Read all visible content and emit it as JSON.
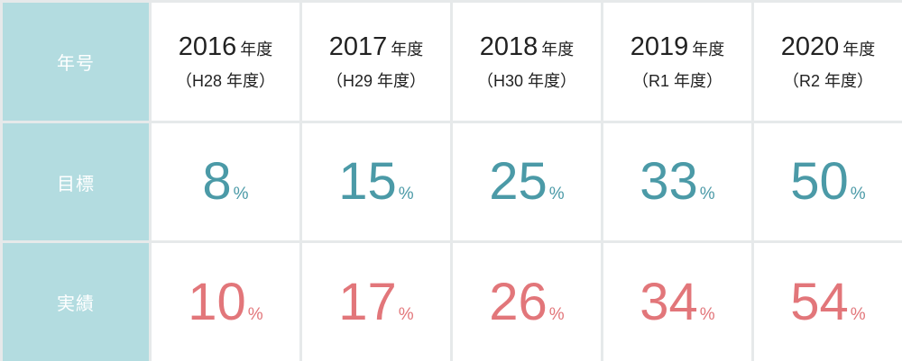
{
  "header_label": "年号",
  "rows": {
    "target_label": "目標",
    "actual_label": "実績"
  },
  "years": [
    {
      "year": "2016",
      "suffix": "年度",
      "era": "（H28 年度）",
      "target": "8",
      "actual": "10"
    },
    {
      "year": "2017",
      "suffix": "年度",
      "era": "（H29 年度）",
      "target": "15",
      "actual": "17"
    },
    {
      "year": "2018",
      "suffix": "年度",
      "era": "（H30 年度）",
      "target": "25",
      "actual": "26"
    },
    {
      "year": "2019",
      "suffix": "年度",
      "era": "（R1 年度）",
      "target": "33",
      "actual": "34"
    },
    {
      "year": "2020",
      "suffix": "年度",
      "era": "（R2 年度）",
      "target": "50",
      "actual": "54"
    }
  ],
  "percent_sign": "%",
  "colors": {
    "header_bg": "#b3dce0",
    "target_text": "#4b9aa7",
    "actual_text": "#e2767a",
    "grid_line": "#e6e9ea"
  }
}
